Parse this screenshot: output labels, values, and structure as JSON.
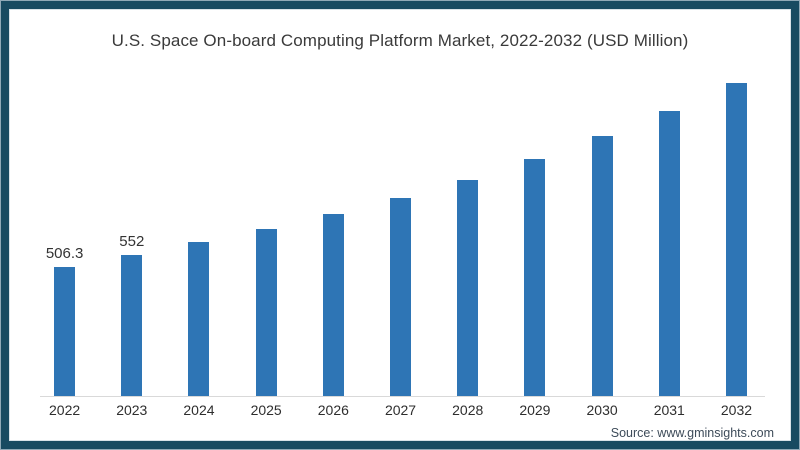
{
  "frame": {
    "border_color": "#174b61",
    "background_color": "#ffffff"
  },
  "source": "Source: www.gminsights.com",
  "chart_data": {
    "type": "bar",
    "title": "U.S. Space On-board Computing Platform Market, 2022-2032 (USD Million)",
    "categories": [
      "2022",
      "2023",
      "2024",
      "2025",
      "2026",
      "2027",
      "2028",
      "2029",
      "2030",
      "2031",
      "2032"
    ],
    "values": [
      506.3,
      552,
      605,
      655,
      715,
      777,
      848,
      930,
      1021,
      1120,
      1230
    ],
    "data_labels": [
      "506.3",
      "552",
      "",
      "",
      "",
      "",
      "",
      "",
      "",
      "",
      ""
    ],
    "xlabel": "",
    "ylabel": "",
    "ylim": [
      0,
      1320
    ],
    "grid": false,
    "legend": false,
    "bar_color": "#2e75b5",
    "axis_line_color": "#d9d9d9"
  }
}
